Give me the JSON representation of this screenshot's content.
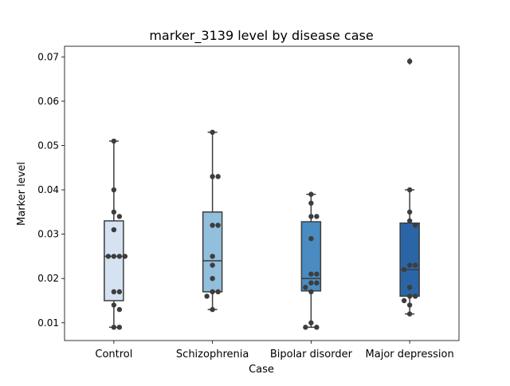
{
  "chart_data": {
    "type": "box",
    "title": "marker_3139 level by disease case",
    "xlabel": "Case",
    "ylabel": "Marker level",
    "ylim": [
      0.006,
      0.0724
    ],
    "yticks": [
      0.01,
      0.02,
      0.03,
      0.04,
      0.05,
      0.06,
      0.07
    ],
    "ytick_labels": [
      "0.01",
      "0.02",
      "0.03",
      "0.04",
      "0.05",
      "0.06",
      "0.07"
    ],
    "categories": [
      "Control",
      "Schizophrenia",
      "Bipolar disorder",
      "Major depression"
    ],
    "colors": [
      "#d4e2f1",
      "#92bfdb",
      "#4a8cc2",
      "#2a66a7"
    ],
    "point_color": "#3d3d3d",
    "line_color": "#3d3d3d",
    "grid": false,
    "boxes": [
      {
        "category": "Control",
        "q1": 0.015,
        "median": 0.025,
        "q3": 0.033,
        "whisker_low": 0.009,
        "whisker_high": 0.051,
        "outliers": []
      },
      {
        "category": "Schizophrenia",
        "q1": 0.017,
        "median": 0.024,
        "q3": 0.035,
        "whisker_low": 0.013,
        "whisker_high": 0.053,
        "outliers": []
      },
      {
        "category": "Bipolar disorder",
        "q1": 0.0172,
        "median": 0.02,
        "q3": 0.0328,
        "whisker_low": 0.009,
        "whisker_high": 0.039,
        "outliers": []
      },
      {
        "category": "Major depression",
        "q1": 0.016,
        "median": 0.022,
        "q3": 0.0325,
        "whisker_low": 0.012,
        "whisker_high": 0.04,
        "outliers": [
          0.069
        ]
      }
    ],
    "points": [
      {
        "category": "Control",
        "values": [
          0.051,
          0.04,
          0.035,
          0.034,
          0.031,
          0.025,
          0.025,
          0.025,
          0.025,
          0.017,
          0.017,
          0.014,
          0.013,
          0.009,
          0.009
        ]
      },
      {
        "category": "Schizophrenia",
        "values": [
          0.053,
          0.043,
          0.043,
          0.032,
          0.032,
          0.025,
          0.023,
          0.02,
          0.017,
          0.017,
          0.016,
          0.013
        ]
      },
      {
        "category": "Bipolar disorder",
        "values": [
          0.039,
          0.037,
          0.034,
          0.034,
          0.029,
          0.021,
          0.021,
          0.019,
          0.019,
          0.018,
          0.017,
          0.01,
          0.009,
          0.009
        ]
      },
      {
        "category": "Major depression",
        "values": [
          0.069,
          0.04,
          0.035,
          0.033,
          0.032,
          0.023,
          0.023,
          0.022,
          0.018,
          0.016,
          0.016,
          0.015,
          0.014,
          0.012
        ]
      }
    ]
  }
}
